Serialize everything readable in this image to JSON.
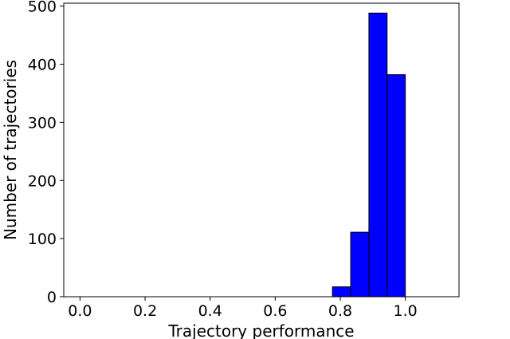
{
  "chart_data": {
    "type": "bar",
    "xlabel": "Trajectory performance",
    "ylabel": "Number of trajectories",
    "xlim": [
      -0.05,
      1.165
    ],
    "ylim": [
      0,
      505
    ],
    "xticks": [
      0.0,
      0.2,
      0.4,
      0.6,
      0.8,
      1.0
    ],
    "xtick_labels": [
      "0.0",
      "0.2",
      "0.4",
      "0.6",
      "0.8",
      "1.0"
    ],
    "yticks": [
      0,
      100,
      200,
      300,
      400,
      500
    ],
    "ytick_labels": [
      "0",
      "100",
      "200",
      "300",
      "400",
      "500"
    ],
    "bin_width": 0.056,
    "bins": [
      {
        "start": -0.02,
        "count": 0
      },
      {
        "start": 0.036,
        "count": 0
      },
      {
        "start": 0.092,
        "count": 0
      },
      {
        "start": 0.148,
        "count": 0
      },
      {
        "start": 0.204,
        "count": 0
      },
      {
        "start": 0.26,
        "count": 0
      },
      {
        "start": 0.316,
        "count": 0
      },
      {
        "start": 0.372,
        "count": 0
      },
      {
        "start": 0.428,
        "count": 0
      },
      {
        "start": 0.484,
        "count": 0
      },
      {
        "start": 0.54,
        "count": 0
      },
      {
        "start": 0.596,
        "count": 0
      },
      {
        "start": 0.652,
        "count": 0
      },
      {
        "start": 0.708,
        "count": 0
      },
      {
        "start": 0.776,
        "count": 17
      },
      {
        "start": 0.832,
        "count": 111
      },
      {
        "start": 0.888,
        "count": 488
      },
      {
        "start": 0.944,
        "count": 382
      },
      {
        "start": 1.0,
        "count": 0
      },
      {
        "start": 1.056,
        "count": 0
      }
    ],
    "bar_color": "#0000ff",
    "edge_color": "#000000",
    "grid": false,
    "legend": "none"
  }
}
